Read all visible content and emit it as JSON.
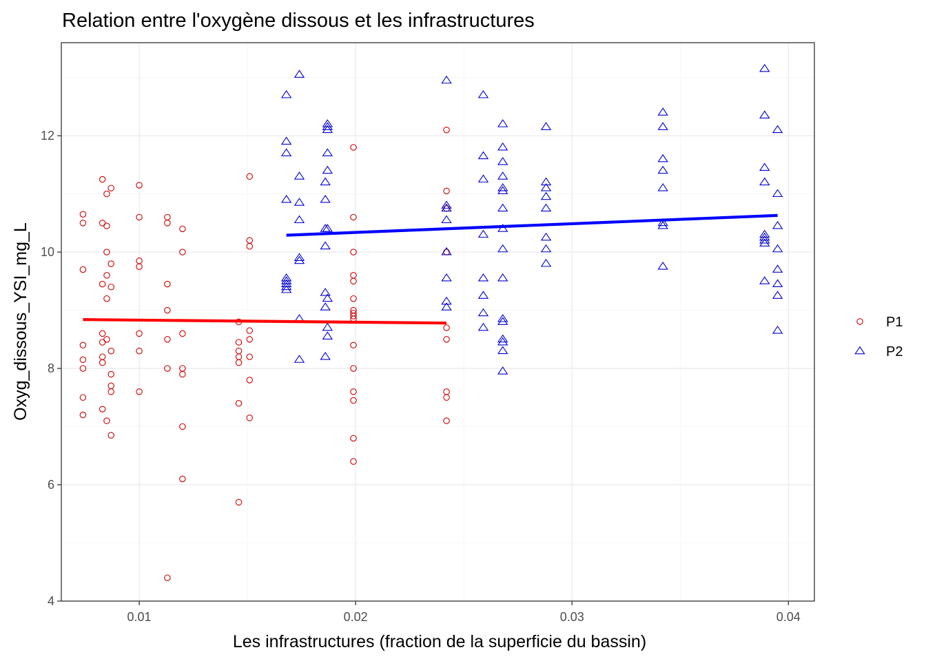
{
  "chart_data": {
    "type": "scatter",
    "title": "Relation entre l'oxygène dissous et les infrastructures",
    "xlabel": "Les infrastructures (fraction de la superficie du bassin)",
    "ylabel": "Oxyg_dissous_YSI_mg_L",
    "xlim": [
      0.0064,
      0.0412
    ],
    "ylim": [
      4,
      13.6
    ],
    "x_ticks": [
      0.01,
      0.02,
      0.03,
      0.04
    ],
    "x_tick_labels": [
      "0.01",
      "0.02",
      "0.03",
      "0.04"
    ],
    "y_ticks": [
      4,
      6,
      8,
      10,
      12
    ],
    "y_tick_labels": [
      "4",
      "6",
      "8",
      "10",
      "12"
    ],
    "grid": true,
    "legend_position": "right",
    "series": [
      {
        "name": "P1",
        "color": "#cc0000",
        "line_color": "#ff0000",
        "marker": "circle",
        "trend": {
          "x": [
            0.0074,
            0.0242
          ],
          "y": [
            8.84,
            8.78
          ]
        },
        "points": [
          [
            0.0074,
            10.65
          ],
          [
            0.0074,
            10.5
          ],
          [
            0.0074,
            9.7
          ],
          [
            0.0074,
            8.4
          ],
          [
            0.0074,
            8.15
          ],
          [
            0.0074,
            8.0
          ],
          [
            0.0074,
            7.5
          ],
          [
            0.0074,
            7.2
          ],
          [
            0.0083,
            11.25
          ],
          [
            0.0083,
            10.5
          ],
          [
            0.0083,
            9.45
          ],
          [
            0.0083,
            8.6
          ],
          [
            0.0083,
            8.45
          ],
          [
            0.0083,
            8.2
          ],
          [
            0.0083,
            8.1
          ],
          [
            0.0083,
            7.3
          ],
          [
            0.0085,
            11.0
          ],
          [
            0.0085,
            10.45
          ],
          [
            0.0085,
            10.0
          ],
          [
            0.0085,
            9.6
          ],
          [
            0.0085,
            9.2
          ],
          [
            0.0085,
            8.5
          ],
          [
            0.0085,
            7.1
          ],
          [
            0.0087,
            11.1
          ],
          [
            0.0087,
            9.8
          ],
          [
            0.0087,
            9.4
          ],
          [
            0.0087,
            8.3
          ],
          [
            0.0087,
            7.9
          ],
          [
            0.0087,
            7.7
          ],
          [
            0.0087,
            7.6
          ],
          [
            0.0087,
            6.85
          ],
          [
            0.01,
            11.15
          ],
          [
            0.01,
            10.6
          ],
          [
            0.01,
            9.85
          ],
          [
            0.01,
            9.75
          ],
          [
            0.01,
            8.6
          ],
          [
            0.01,
            8.3
          ],
          [
            0.01,
            7.6
          ],
          [
            0.0113,
            10.6
          ],
          [
            0.0113,
            10.5
          ],
          [
            0.0113,
            9.45
          ],
          [
            0.0113,
            9.0
          ],
          [
            0.0113,
            8.5
          ],
          [
            0.0113,
            8.0
          ],
          [
            0.0113,
            4.4
          ],
          [
            0.012,
            10.4
          ],
          [
            0.012,
            10.0
          ],
          [
            0.012,
            8.6
          ],
          [
            0.012,
            8.0
          ],
          [
            0.012,
            7.9
          ],
          [
            0.012,
            7.0
          ],
          [
            0.012,
            6.1
          ],
          [
            0.0146,
            8.8
          ],
          [
            0.0146,
            8.45
          ],
          [
            0.0146,
            8.3
          ],
          [
            0.0146,
            8.2
          ],
          [
            0.0146,
            8.1
          ],
          [
            0.0146,
            7.4
          ],
          [
            0.0146,
            5.7
          ],
          [
            0.0151,
            11.3
          ],
          [
            0.0151,
            10.2
          ],
          [
            0.0151,
            10.1
          ],
          [
            0.0151,
            8.65
          ],
          [
            0.0151,
            8.5
          ],
          [
            0.0151,
            8.2
          ],
          [
            0.0151,
            7.8
          ],
          [
            0.0151,
            7.15
          ],
          [
            0.0199,
            11.8
          ],
          [
            0.0199,
            10.6
          ],
          [
            0.0199,
            10.0
          ],
          [
            0.0199,
            9.6
          ],
          [
            0.0199,
            9.5
          ],
          [
            0.0199,
            9.2
          ],
          [
            0.0199,
            9.0
          ],
          [
            0.0199,
            8.95
          ],
          [
            0.0199,
            8.9
          ],
          [
            0.0199,
            8.85
          ],
          [
            0.0199,
            8.4
          ],
          [
            0.0199,
            8.0
          ],
          [
            0.0199,
            7.6
          ],
          [
            0.0199,
            7.45
          ],
          [
            0.0199,
            6.8
          ],
          [
            0.0199,
            6.4
          ],
          [
            0.0242,
            12.1
          ],
          [
            0.0242,
            11.05
          ],
          [
            0.0242,
            10.75
          ],
          [
            0.0242,
            10.0
          ],
          [
            0.0242,
            8.7
          ],
          [
            0.0242,
            8.5
          ],
          [
            0.0242,
            7.6
          ],
          [
            0.0242,
            7.5
          ],
          [
            0.0242,
            7.1
          ]
        ]
      },
      {
        "name": "P2",
        "color": "#0000cc",
        "line_color": "#0000ff",
        "marker": "triangle",
        "trend": {
          "x": [
            0.0168,
            0.0395
          ],
          "y": [
            10.29,
            10.63
          ]
        },
        "points": [
          [
            0.0168,
            12.7
          ],
          [
            0.0168,
            11.9
          ],
          [
            0.0168,
            11.7
          ],
          [
            0.0168,
            10.9
          ],
          [
            0.0168,
            9.55
          ],
          [
            0.0168,
            9.5
          ],
          [
            0.0168,
            9.45
          ],
          [
            0.0168,
            9.4
          ],
          [
            0.0168,
            9.35
          ],
          [
            0.0174,
            13.05
          ],
          [
            0.0174,
            11.3
          ],
          [
            0.0174,
            10.85
          ],
          [
            0.0174,
            10.55
          ],
          [
            0.0174,
            9.9
          ],
          [
            0.0174,
            9.85
          ],
          [
            0.0174,
            8.85
          ],
          [
            0.0174,
            8.15
          ],
          [
            0.0186,
            11.2
          ],
          [
            0.0186,
            10.9
          ],
          [
            0.0186,
            10.4
          ],
          [
            0.0186,
            10.1
          ],
          [
            0.0186,
            9.3
          ],
          [
            0.0186,
            9.05
          ],
          [
            0.0186,
            8.2
          ],
          [
            0.0187,
            12.2
          ],
          [
            0.0187,
            12.15
          ],
          [
            0.0187,
            12.1
          ],
          [
            0.0187,
            11.7
          ],
          [
            0.0187,
            11.4
          ],
          [
            0.0187,
            10.4
          ],
          [
            0.0187,
            9.2
          ],
          [
            0.0187,
            8.7
          ],
          [
            0.0187,
            8.55
          ],
          [
            0.0242,
            12.95
          ],
          [
            0.0242,
            10.8
          ],
          [
            0.0242,
            10.75
          ],
          [
            0.0242,
            10.55
          ],
          [
            0.0242,
            10.0
          ],
          [
            0.0242,
            9.55
          ],
          [
            0.0242,
            9.15
          ],
          [
            0.0242,
            9.05
          ],
          [
            0.0259,
            12.7
          ],
          [
            0.0259,
            11.65
          ],
          [
            0.0259,
            11.25
          ],
          [
            0.0259,
            10.3
          ],
          [
            0.0259,
            9.55
          ],
          [
            0.0259,
            9.25
          ],
          [
            0.0259,
            8.95
          ],
          [
            0.0259,
            8.7
          ],
          [
            0.0268,
            12.2
          ],
          [
            0.0268,
            11.8
          ],
          [
            0.0268,
            11.55
          ],
          [
            0.0268,
            11.3
          ],
          [
            0.0268,
            11.1
          ],
          [
            0.0268,
            11.05
          ],
          [
            0.0268,
            10.75
          ],
          [
            0.0268,
            10.4
          ],
          [
            0.0268,
            10.05
          ],
          [
            0.0268,
            9.55
          ],
          [
            0.0268,
            8.85
          ],
          [
            0.0268,
            8.8
          ],
          [
            0.0268,
            8.5
          ],
          [
            0.0268,
            8.45
          ],
          [
            0.0268,
            8.3
          ],
          [
            0.0268,
            7.95
          ],
          [
            0.0288,
            12.15
          ],
          [
            0.0288,
            11.2
          ],
          [
            0.0288,
            11.1
          ],
          [
            0.0288,
            10.95
          ],
          [
            0.0288,
            10.75
          ],
          [
            0.0288,
            10.25
          ],
          [
            0.0288,
            10.05
          ],
          [
            0.0288,
            9.8
          ],
          [
            0.0342,
            12.4
          ],
          [
            0.0342,
            12.15
          ],
          [
            0.0342,
            11.6
          ],
          [
            0.0342,
            11.4
          ],
          [
            0.0342,
            11.1
          ],
          [
            0.0342,
            10.5
          ],
          [
            0.0342,
            10.45
          ],
          [
            0.0342,
            9.75
          ],
          [
            0.0389,
            13.15
          ],
          [
            0.0389,
            12.35
          ],
          [
            0.0389,
            11.45
          ],
          [
            0.0389,
            11.2
          ],
          [
            0.0389,
            10.3
          ],
          [
            0.0389,
            10.25
          ],
          [
            0.0389,
            10.2
          ],
          [
            0.0389,
            10.15
          ],
          [
            0.0389,
            9.5
          ],
          [
            0.0395,
            12.1
          ],
          [
            0.0395,
            11.0
          ],
          [
            0.0395,
            10.45
          ],
          [
            0.0395,
            10.05
          ],
          [
            0.0395,
            9.7
          ],
          [
            0.0395,
            9.45
          ],
          [
            0.0395,
            9.25
          ],
          [
            0.0395,
            8.65
          ]
        ]
      }
    ]
  }
}
